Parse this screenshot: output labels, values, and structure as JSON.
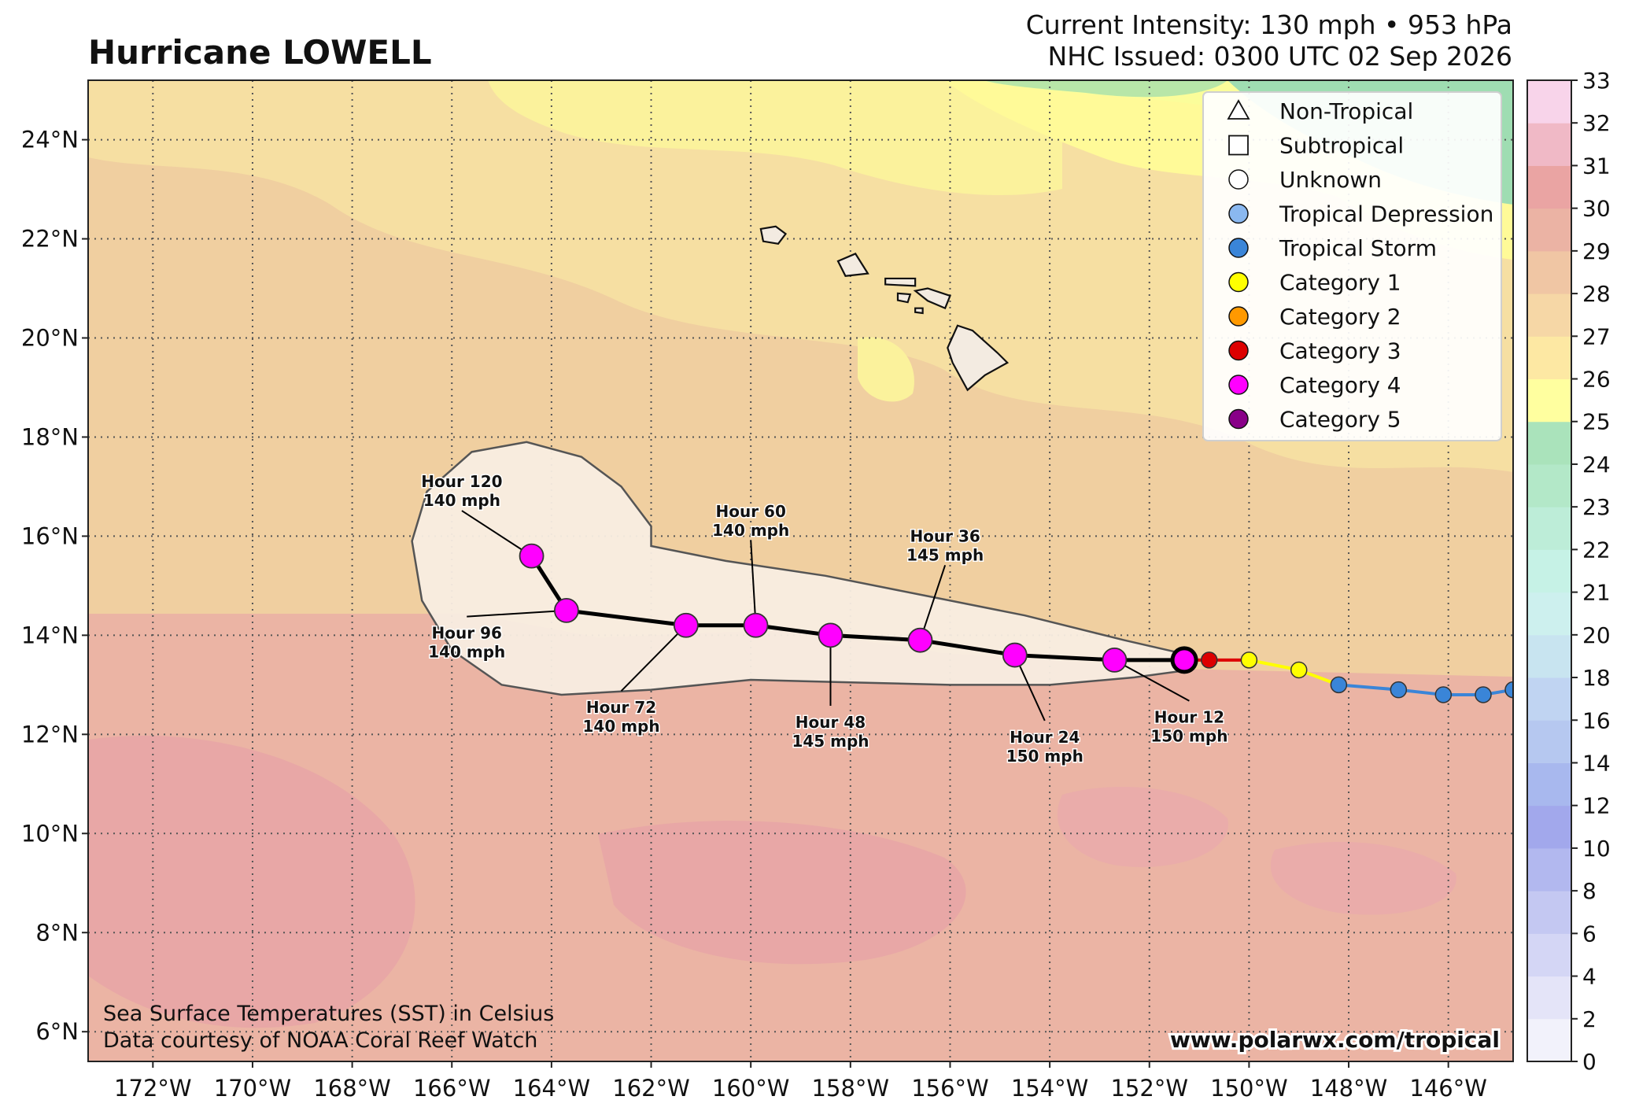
{
  "header": {
    "title": "Hurricane LOWELL",
    "intensity": "Current Intensity: 130 mph • 953 hPa",
    "issued": "NHC Issued: 0300 UTC 02 Sep 2026"
  },
  "map": {
    "lon_range": [
      -173.3,
      -144.7
    ],
    "lat_range": [
      5.4,
      25.2
    ],
    "lon_ticks": [
      -172,
      -170,
      -168,
      -166,
      -164,
      -162,
      -160,
      -158,
      -156,
      -154,
      -152,
      -150,
      -148,
      -146
    ],
    "lat_ticks": [
      6,
      8,
      10,
      12,
      14,
      16,
      18,
      20,
      22,
      24
    ],
    "lon_tick_labels": [
      "172°W",
      "170°W",
      "168°W",
      "166°W",
      "164°W",
      "162°W",
      "160°W",
      "158°W",
      "156°W",
      "154°W",
      "152°W",
      "150°W",
      "148°W",
      "146°W"
    ],
    "lat_tick_labels": [
      "6°N",
      "8°N",
      "10°N",
      "12°N",
      "14°N",
      "16°N",
      "18°N",
      "20°N",
      "22°N",
      "24°N"
    ],
    "grid": true,
    "ocean_color": "#f0cfa0"
  },
  "legend": {
    "placement": "top-right",
    "items": [
      {
        "label": "Non-Tropical",
        "shape": "triangle",
        "color": "#ffffff"
      },
      {
        "label": "Subtropical",
        "shape": "square",
        "color": "#ffffff"
      },
      {
        "label": "Unknown",
        "shape": "circle",
        "color": "#ffffff"
      },
      {
        "label": "Tropical Depression",
        "shape": "circle",
        "color": "#8ab8f0"
      },
      {
        "label": "Tropical Storm",
        "shape": "circle",
        "color": "#3a85d8"
      },
      {
        "label": "Category 1",
        "shape": "circle",
        "color": "#ffff00"
      },
      {
        "label": "Category 2",
        "shape": "circle",
        "color": "#ff9900"
      },
      {
        "label": "Category 3",
        "shape": "circle",
        "color": "#dd0000"
      },
      {
        "label": "Category 4",
        "shape": "circle",
        "color": "#ff00ff"
      },
      {
        "label": "Category 5",
        "shape": "circle",
        "color": "#880088"
      }
    ]
  },
  "past_track": [
    {
      "lon": -144.7,
      "lat": 12.9,
      "cat": "ts"
    },
    {
      "lon": -145.3,
      "lat": 12.8,
      "cat": "ts"
    },
    {
      "lon": -146.1,
      "lat": 12.8,
      "cat": "ts"
    },
    {
      "lon": -147.0,
      "lat": 12.9,
      "cat": "ts"
    },
    {
      "lon": -148.2,
      "lat": 13.0,
      "cat": "ts"
    },
    {
      "lon": -149.0,
      "lat": 13.3,
      "cat": "c1"
    },
    {
      "lon": -150.0,
      "lat": 13.5,
      "cat": "c1"
    },
    {
      "lon": -150.8,
      "lat": 13.5,
      "cat": "c3"
    }
  ],
  "current_position": {
    "lon": -151.3,
    "lat": 13.5,
    "cat": "c4"
  },
  "forecast": [
    {
      "label": "Hour 12",
      "speed": "150 mph",
      "lon": -152.7,
      "lat": 13.5,
      "cat": "c4",
      "label_lon": -151.2,
      "label_lat": 12.2
    },
    {
      "label": "Hour 24",
      "speed": "150 mph",
      "lon": -154.7,
      "lat": 13.6,
      "cat": "c4",
      "label_lon": -154.1,
      "label_lat": 11.8
    },
    {
      "label": "Hour 36",
      "speed": "145 mph",
      "lon": -156.6,
      "lat": 13.9,
      "cat": "c4",
      "label_lon": -156.1,
      "label_lat": 15.7
    },
    {
      "label": "Hour 48",
      "speed": "145 mph",
      "lon": -158.4,
      "lat": 14.0,
      "cat": "c4",
      "label_lon": -158.4,
      "label_lat": 12.1
    },
    {
      "label": "Hour 60",
      "speed": "140 mph",
      "lon": -159.9,
      "lat": 14.2,
      "cat": "c4",
      "label_lon": -160.0,
      "label_lat": 16.2
    },
    {
      "label": "Hour 72",
      "speed": "140 mph",
      "lon": -161.3,
      "lat": 14.2,
      "cat": "c4",
      "label_lon": -162.6,
      "label_lat": 12.4
    },
    {
      "label": "Hour 96",
      "speed": "140 mph",
      "lon": -163.7,
      "lat": 14.5,
      "cat": "c4",
      "label_lon": -165.7,
      "label_lat": 13.9
    },
    {
      "label": "Hour 120",
      "speed": "140 mph",
      "lon": -164.4,
      "lat": 15.6,
      "cat": "c4",
      "label_lon": -165.8,
      "label_lat": 16.8
    }
  ],
  "cone": [
    [
      -151.2,
      13.6
    ],
    [
      -152.5,
      13.9
    ],
    [
      -154.5,
      14.4
    ],
    [
      -156.5,
      14.8
    ],
    [
      -158.5,
      15.2
    ],
    [
      -160.5,
      15.5
    ],
    [
      -162.0,
      15.8
    ],
    [
      -162.0,
      16.2
    ],
    [
      -162.6,
      17.0
    ],
    [
      -163.4,
      17.6
    ],
    [
      -164.5,
      17.9
    ],
    [
      -165.6,
      17.7
    ],
    [
      -166.5,
      16.9
    ],
    [
      -166.8,
      15.9
    ],
    [
      -166.6,
      14.7
    ],
    [
      -166.0,
      13.7
    ],
    [
      -165.0,
      13.0
    ],
    [
      -163.8,
      12.8
    ],
    [
      -162.0,
      12.9
    ],
    [
      -160.0,
      13.1
    ],
    [
      -158.0,
      13.05
    ],
    [
      -156.0,
      13.0
    ],
    [
      -154.0,
      13.0
    ],
    [
      -152.3,
      13.15
    ],
    [
      -151.2,
      13.3
    ]
  ],
  "islands": [
    {
      "name": "Niihau-Kauai",
      "pts": [
        [
          -159.8,
          22.2
        ],
        [
          -159.5,
          22.25
        ],
        [
          -159.3,
          22.1
        ],
        [
          -159.45,
          21.9
        ],
        [
          -159.75,
          21.95
        ]
      ]
    },
    {
      "name": "Oahu",
      "pts": [
        [
          -158.25,
          21.55
        ],
        [
          -157.9,
          21.7
        ],
        [
          -157.65,
          21.3
        ],
        [
          -158.1,
          21.25
        ]
      ]
    },
    {
      "name": "Molokai",
      "pts": [
        [
          -157.3,
          21.2
        ],
        [
          -156.7,
          21.2
        ],
        [
          -156.7,
          21.05
        ],
        [
          -157.3,
          21.08
        ]
      ]
    },
    {
      "name": "Maui",
      "pts": [
        [
          -156.7,
          20.95
        ],
        [
          -156.45,
          21.0
        ],
        [
          -156.0,
          20.85
        ],
        [
          -156.1,
          20.6
        ],
        [
          -156.45,
          20.75
        ]
      ]
    },
    {
      "name": "Lanai",
      "pts": [
        [
          -157.05,
          20.9
        ],
        [
          -156.8,
          20.88
        ],
        [
          -156.85,
          20.72
        ],
        [
          -157.05,
          20.76
        ]
      ]
    },
    {
      "name": "Kahoolawe",
      "pts": [
        [
          -156.7,
          20.6
        ],
        [
          -156.55,
          20.6
        ],
        [
          -156.55,
          20.5
        ],
        [
          -156.7,
          20.52
        ]
      ]
    },
    {
      "name": "Big Island",
      "pts": [
        [
          -155.85,
          20.25
        ],
        [
          -155.55,
          20.15
        ],
        [
          -155.05,
          19.7
        ],
        [
          -154.85,
          19.5
        ],
        [
          -155.3,
          19.25
        ],
        [
          -155.65,
          18.95
        ],
        [
          -155.95,
          19.5
        ],
        [
          -156.05,
          19.8
        ]
      ]
    }
  ],
  "colorbar": {
    "ticks": [
      0,
      2,
      4,
      6,
      8,
      10,
      12,
      14,
      16,
      18,
      20,
      21,
      22,
      23,
      24,
      25,
      26,
      27,
      28,
      29,
      30,
      31,
      32,
      33
    ],
    "colors": [
      "#ffffff",
      "#f2f2fb",
      "#e4e4f8",
      "#d4d6f5",
      "#c4c8f2",
      "#b2b8ef",
      "#a2a8ec",
      "#a8b8ee",
      "#b6c8f0",
      "#c0d4f2",
      "#c8e4f0",
      "#cdf0ee",
      "#c6f2e6",
      "#bdedd8",
      "#b3e8c8",
      "#aae3bb",
      "#ffff9f",
      "#fde8a3",
      "#f6d7a6",
      "#f0c6a4",
      "#ebb3a4",
      "#eaa4a3",
      "#f0b9c6",
      "#f8d4ea"
    ]
  },
  "footer": {
    "sst_line1": "Sea Surface Temperatures (SST) in Celsius",
    "sst_line2": "Data courtesy of NOAA Coral Reef Watch",
    "website": "www.polarwx.com/tropical"
  }
}
